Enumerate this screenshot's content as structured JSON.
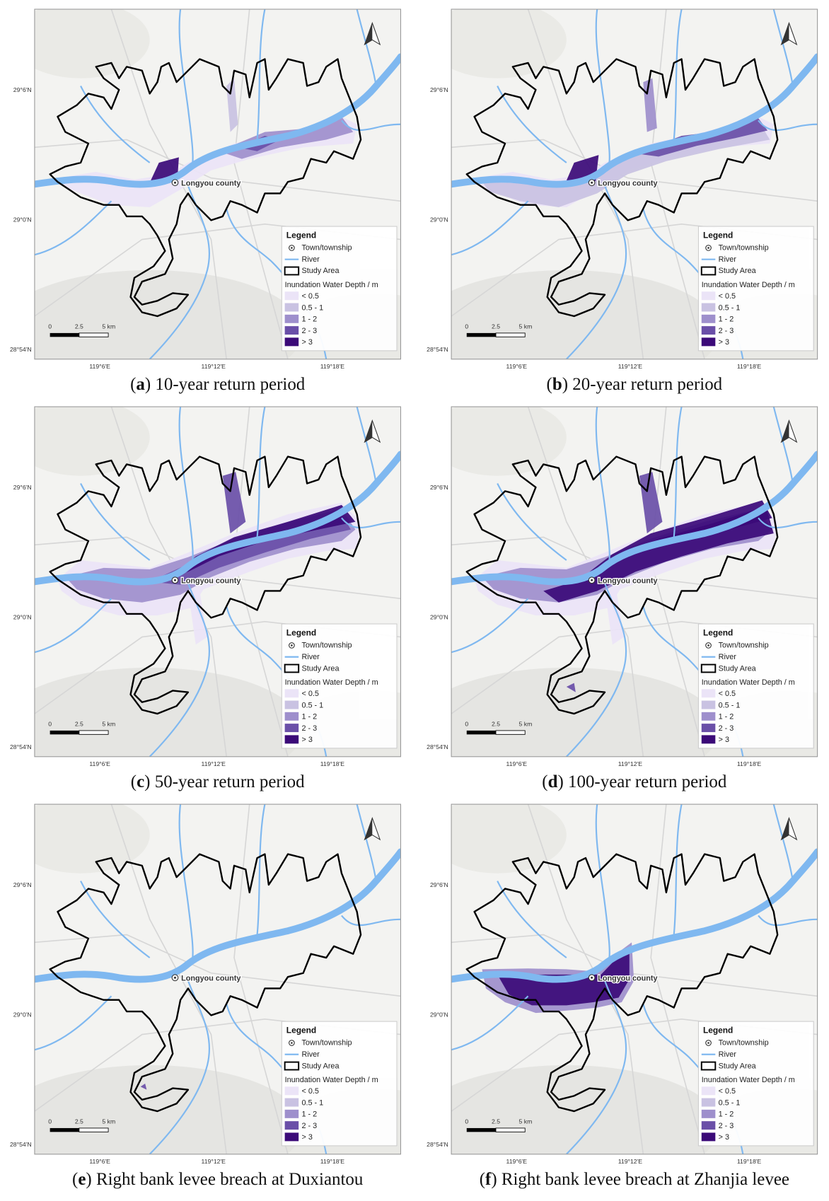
{
  "map_frame": {
    "lat_labels": [
      "29°6'N",
      "29°0'N",
      "28°54'N"
    ],
    "lon_labels": [
      "119°6'E",
      "119°12'E",
      "119°18'E"
    ],
    "scale_labels": [
      "0",
      "2.5",
      "5 km"
    ],
    "town_label": "Longyou county",
    "legend": {
      "title": "Legend",
      "items": [
        {
          "label": "Town/township",
          "color": "#333333"
        },
        {
          "label": "River",
          "color": "#7fb8f0"
        },
        {
          "label": "Study Area",
          "color": "#000000"
        }
      ],
      "depth_title": "Inundation Water Depth / m",
      "depth_classes": [
        {
          "label": "< 0.5",
          "color": "#ebe4f7"
        },
        {
          "label": "0.5 - 1",
          "color": "#c9c2e2"
        },
        {
          "label": "1 - 2",
          "color": "#9e8fcc"
        },
        {
          "label": "2 - 3",
          "color": "#6a4fa8"
        },
        {
          "label": "> 3",
          "color": "#3b0a78"
        }
      ]
    }
  },
  "panels": [
    {
      "caption": [
        "(",
        "a",
        ") 10-year return period"
      ]
    },
    {
      "caption": [
        "(",
        "b",
        ") 20-year return period"
      ]
    },
    {
      "caption": [
        "(",
        "c",
        ") 50-year return period"
      ]
    },
    {
      "caption": [
        "(",
        "d",
        ") 100-year return period"
      ]
    },
    {
      "caption": [
        "(",
        "e",
        ") Right bank levee breach at Duxiantou"
      ]
    },
    {
      "caption": [
        "(",
        "f",
        ") Right bank levee breach at Zhanjia levee"
      ]
    }
  ]
}
